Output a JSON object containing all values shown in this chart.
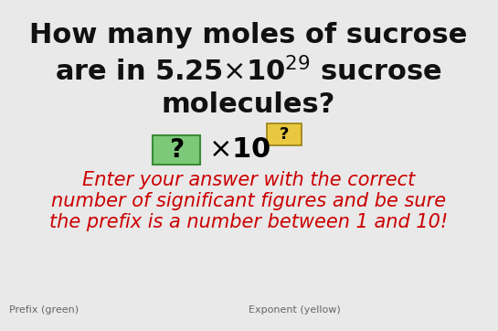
{
  "background_color": "#e9e9e9",
  "title_line1": "How many moles of sucrose",
  "title_line2": "are in 5.25×10$^{29}$ sucrose",
  "title_line3": "molecules?",
  "title_fontsize": 22,
  "title_color": "#111111",
  "green_box_color": "#7dc97a",
  "green_box_edge": "#3a8c37",
  "yellow_box_color": "#e8c840",
  "yellow_box_edge": "#9a8010",
  "answer_fontsize": 22,
  "answer_q_fontsize": 20,
  "answer_exp_fontsize": 13,
  "instruction_line1": "Enter your answer with the correct",
  "instruction_line2": "number of significant figures and be sure",
  "instruction_line3": "the prefix is a number between 1 and 10!",
  "instruction_color": "#cc0000",
  "instruction_fontsize": 15,
  "footer_prefix": "Prefix (green)",
  "footer_exponent": "Exponent (yellow)",
  "footer_fontsize": 8,
  "footer_color": "#666666"
}
